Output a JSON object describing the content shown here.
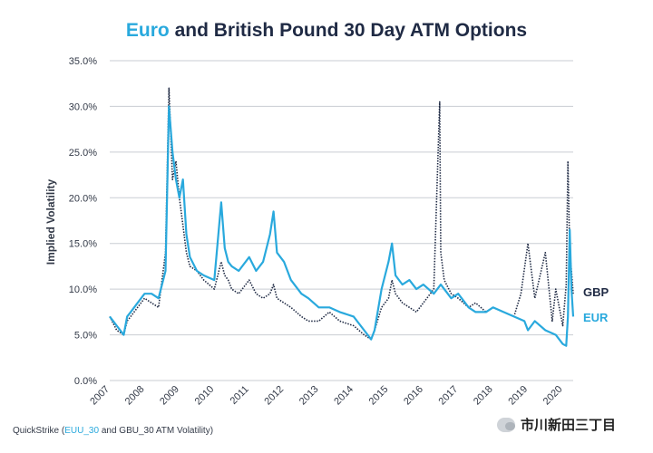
{
  "title": {
    "highlight": "Euro",
    "rest": " and British Pound 30 Day ATM Options"
  },
  "source": {
    "prefix": "QuickStrike (",
    "highlight": "EUU_30",
    "suffix": " and GBU_30 ATM Volatility)"
  },
  "watermark": {
    "text": "市川新田三丁目"
  },
  "colors": {
    "eur": "#29a9dd",
    "gbp": "#1f2a44",
    "grid": "#c9cdd3",
    "text": "#333a48"
  },
  "chart_data": {
    "type": "line",
    "title": "Euro and British Pound 30 Day ATM Options",
    "ylabel": "Implied Volatility",
    "xlabel": "",
    "ylim": [
      0,
      35
    ],
    "xlim": [
      2007.0,
      2020.3
    ],
    "y_ticks": [
      0,
      5,
      10,
      15,
      20,
      25,
      30,
      35
    ],
    "y_tick_labels": [
      "0.0%",
      "5.0%",
      "10.0%",
      "15.0%",
      "20.0%",
      "25.0%",
      "30.0%",
      "35.0%"
    ],
    "x_ticks": [
      2007,
      2008,
      2009,
      2010,
      2011,
      2012,
      2013,
      2014,
      2015,
      2016,
      2017,
      2018,
      2019,
      2020
    ],
    "x_tick_labels": [
      "2007",
      "2008",
      "2009",
      "2010",
      "2011",
      "2012",
      "2013",
      "2014",
      "2015",
      "2016",
      "2017",
      "2018",
      "2019",
      "2020"
    ],
    "grid": "horizontal",
    "series": [
      {
        "name": "EUR",
        "style": "solid",
        "x": [
          2007.0,
          2007.2,
          2007.4,
          2007.5,
          2007.6,
          2007.8,
          2008.0,
          2008.2,
          2008.4,
          2008.6,
          2008.7,
          2008.8,
          2008.9,
          2009.0,
          2009.1,
          2009.2,
          2009.3,
          2009.5,
          2009.7,
          2010.0,
          2010.2,
          2010.3,
          2010.4,
          2010.5,
          2010.7,
          2011.0,
          2011.2,
          2011.4,
          2011.6,
          2011.7,
          2011.8,
          2012.0,
          2012.2,
          2012.5,
          2012.7,
          2013.0,
          2013.3,
          2013.6,
          2014.0,
          2014.3,
          2014.5,
          2014.6,
          2014.8,
          2015.0,
          2015.1,
          2015.2,
          2015.4,
          2015.6,
          2015.8,
          2016.0,
          2016.3,
          2016.5,
          2016.8,
          2017.0,
          2017.3,
          2017.5,
          2017.8,
          2018.0,
          2018.3,
          2018.6,
          2018.9,
          2019.0,
          2019.2,
          2019.5,
          2019.8,
          2020.0,
          2020.1,
          2020.15,
          2020.2,
          2020.25,
          2020.3
        ],
        "y": [
          7.0,
          6.0,
          5.0,
          7.0,
          7.5,
          8.5,
          9.5,
          9.5,
          9.0,
          12.0,
          30.0,
          25.0,
          22.0,
          20.0,
          22.0,
          16.0,
          13.5,
          12.0,
          11.5,
          11.0,
          19.5,
          14.5,
          13.0,
          12.5,
          12.0,
          13.5,
          12.0,
          13.0,
          16.0,
          18.5,
          14.0,
          13.0,
          11.0,
          9.5,
          9.0,
          8.0,
          8.0,
          7.5,
          7.0,
          5.5,
          4.5,
          5.5,
          10.0,
          13.0,
          15.0,
          11.5,
          10.5,
          11.0,
          10.0,
          10.5,
          9.5,
          10.5,
          9.0,
          9.5,
          8.0,
          7.5,
          7.5,
          8.0,
          7.5,
          7.0,
          6.5,
          5.5,
          6.5,
          5.5,
          5.0,
          4.0,
          3.8,
          7.0,
          16.5,
          10.0,
          7.0
        ]
      },
      {
        "name": "GBP",
        "style": "dotted",
        "x": [
          2007.0,
          2007.2,
          2007.4,
          2007.5,
          2007.6,
          2007.8,
          2008.0,
          2008.2,
          2008.4,
          2008.6,
          2008.7,
          2008.8,
          2008.9,
          2009.0,
          2009.1,
          2009.2,
          2009.3,
          2009.5,
          2009.7,
          2010.0,
          2010.2,
          2010.3,
          2010.4,
          2010.5,
          2010.7,
          2011.0,
          2011.2,
          2011.4,
          2011.6,
          2011.7,
          2011.8,
          2012.0,
          2012.2,
          2012.5,
          2012.7,
          2013.0,
          2013.3,
          2013.6,
          2014.0,
          2014.3,
          2014.5,
          2014.6,
          2014.8,
          2015.0,
          2015.1,
          2015.2,
          2015.4,
          2015.6,
          2015.8,
          2016.0,
          2016.3,
          2016.47,
          2016.5,
          2016.6,
          2016.8,
          2017.0,
          2017.3,
          2017.5,
          2017.8,
          2018.0,
          2018.3,
          2018.6,
          2018.8,
          2019.0,
          2019.2,
          2019.5,
          2019.7,
          2019.8,
          2020.0,
          2020.1,
          2020.15,
          2020.2,
          2020.25,
          2020.3
        ],
        "y": [
          7.0,
          5.5,
          5.0,
          6.5,
          7.0,
          8.0,
          9.0,
          8.5,
          8.0,
          14.0,
          32.0,
          22.0,
          24.0,
          20.0,
          17.0,
          14.0,
          12.5,
          12.0,
          11.0,
          10.0,
          13.0,
          11.5,
          11.0,
          10.0,
          9.5,
          11.0,
          9.5,
          9.0,
          9.5,
          10.5,
          9.0,
          8.5,
          8.0,
          7.0,
          6.5,
          6.5,
          7.5,
          6.5,
          6.0,
          5.0,
          4.5,
          5.5,
          8.0,
          9.0,
          11.0,
          9.5,
          8.5,
          8.0,
          7.5,
          8.5,
          10.0,
          30.5,
          14.0,
          11.0,
          9.5,
          9.0,
          8.0,
          8.5,
          7.5,
          8.0,
          7.5,
          7.0,
          9.5,
          15.0,
          9.0,
          14.0,
          6.5,
          10.0,
          6.0,
          10.5,
          24.0,
          14.0,
          12.0,
          9.5
        ]
      }
    ]
  }
}
